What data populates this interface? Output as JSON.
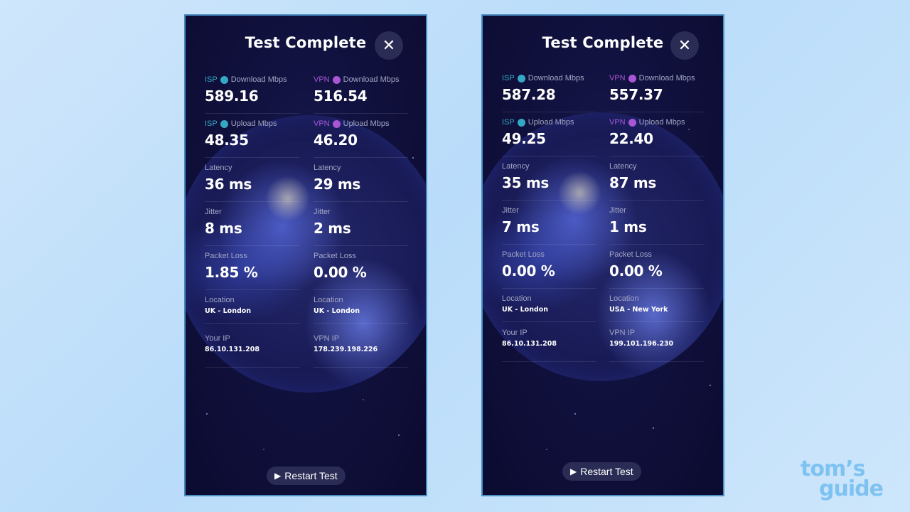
{
  "panels": [
    {
      "title": "Test Complete",
      "close_icon": "✕",
      "restart_label": "Restart Test",
      "metrics": {
        "isp_download": {
          "tag": "ISP",
          "label": "Download Mbps",
          "value": "589.16"
        },
        "vpn_download": {
          "tag": "VPN",
          "label": "Download Mbps",
          "value": "516.54"
        },
        "isp_upload": {
          "tag": "ISP",
          "label": "Upload Mbps",
          "value": "48.35"
        },
        "vpn_upload": {
          "tag": "VPN",
          "label": "Upload Mbps",
          "value": "46.20"
        },
        "isp_latency": {
          "label": "Latency",
          "value": "36 ms"
        },
        "vpn_latency": {
          "label": "Latency",
          "value": "29 ms"
        },
        "isp_jitter": {
          "label": "Jitter",
          "value": "8 ms"
        },
        "vpn_jitter": {
          "label": "Jitter",
          "value": "2 ms"
        },
        "isp_loss": {
          "label": "Packet Loss",
          "value": "1.85 %"
        },
        "vpn_loss": {
          "label": "Packet Loss",
          "value": "0.00 %"
        },
        "isp_location": {
          "label": "Location",
          "value": "UK - London"
        },
        "vpn_location": {
          "label": "Location",
          "value": "UK - London"
        },
        "your_ip": {
          "label": "Your IP",
          "value": "86.10.131.208"
        },
        "vpn_ip": {
          "label": "VPN IP",
          "value": "178.239.198.226"
        }
      }
    },
    {
      "title": "Test Complete",
      "close_icon": "✕",
      "restart_label": "Restart Test",
      "metrics": {
        "isp_download": {
          "tag": "ISP",
          "label": "Download Mbps",
          "value": "587.28"
        },
        "vpn_download": {
          "tag": "VPN",
          "label": "Download Mbps",
          "value": "557.37"
        },
        "isp_upload": {
          "tag": "ISP",
          "label": "Upload Mbps",
          "value": "49.25"
        },
        "vpn_upload": {
          "tag": "VPN",
          "label": "Upload Mbps",
          "value": "22.40"
        },
        "isp_latency": {
          "label": "Latency",
          "value": "35 ms"
        },
        "vpn_latency": {
          "label": "Latency",
          "value": "87 ms"
        },
        "isp_jitter": {
          "label": "Jitter",
          "value": "7 ms"
        },
        "vpn_jitter": {
          "label": "Jitter",
          "value": "1 ms"
        },
        "isp_loss": {
          "label": "Packet Loss",
          "value": "0.00 %"
        },
        "vpn_loss": {
          "label": "Packet Loss",
          "value": "0.00 %"
        },
        "isp_location": {
          "label": "Location",
          "value": "UK - London"
        },
        "vpn_location": {
          "label": "Location",
          "value": "USA - New York"
        },
        "your_ip": {
          "label": "Your IP",
          "value": "86.10.131.208"
        },
        "vpn_ip": {
          "label": "VPN IP",
          "value": "199.101.196.230"
        }
      }
    }
  ],
  "icons": {
    "download": "↓",
    "upload": "↑",
    "play": "▶"
  },
  "colors": {
    "isp": "#35a9c4",
    "vpn": "#a956d6",
    "panel_bg": "#0f0f3a"
  },
  "watermark": {
    "line1": "tom’s",
    "line2": "guide"
  }
}
